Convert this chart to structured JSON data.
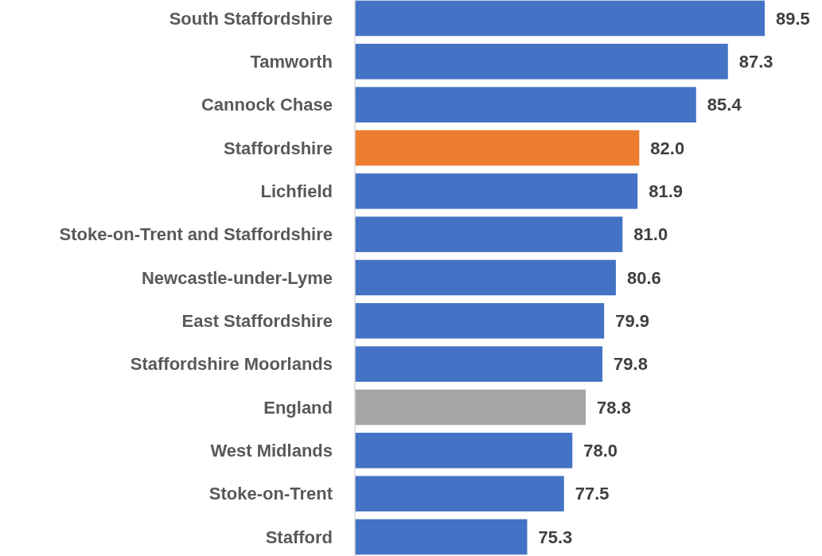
{
  "chart_data": {
    "type": "bar",
    "orientation": "horizontal",
    "categories": [
      "South Staffordshire",
      "Tamworth",
      "Cannock Chase",
      "Staffordshire",
      "Lichfield",
      "Stoke-on-Trent and Staffordshire",
      "Newcastle-under-Lyme",
      "East Staffordshire",
      "Staffordshire Moorlands",
      "England",
      "West Midlands",
      "Stoke-on-Trent",
      "Stafford"
    ],
    "values": [
      89.5,
      87.3,
      85.4,
      82.0,
      81.9,
      81.0,
      80.6,
      79.9,
      79.8,
      78.8,
      78.0,
      77.5,
      75.3
    ],
    "colors": [
      "#4472c4",
      "#4472c4",
      "#4472c4",
      "#ed7d31",
      "#4472c4",
      "#4472c4",
      "#4472c4",
      "#4472c4",
      "#4472c4",
      "#a5a5a5",
      "#4472c4",
      "#4472c4",
      "#4472c4"
    ],
    "value_labels": [
      "89.5",
      "87.3",
      "85.4",
      "82.0",
      "81.9",
      "81.0",
      "80.6",
      "79.9",
      "79.8",
      "78.8",
      "78.0",
      "77.5",
      "75.3"
    ],
    "xlim": [
      65,
      89.5
    ],
    "tick_labels": "y"
  }
}
